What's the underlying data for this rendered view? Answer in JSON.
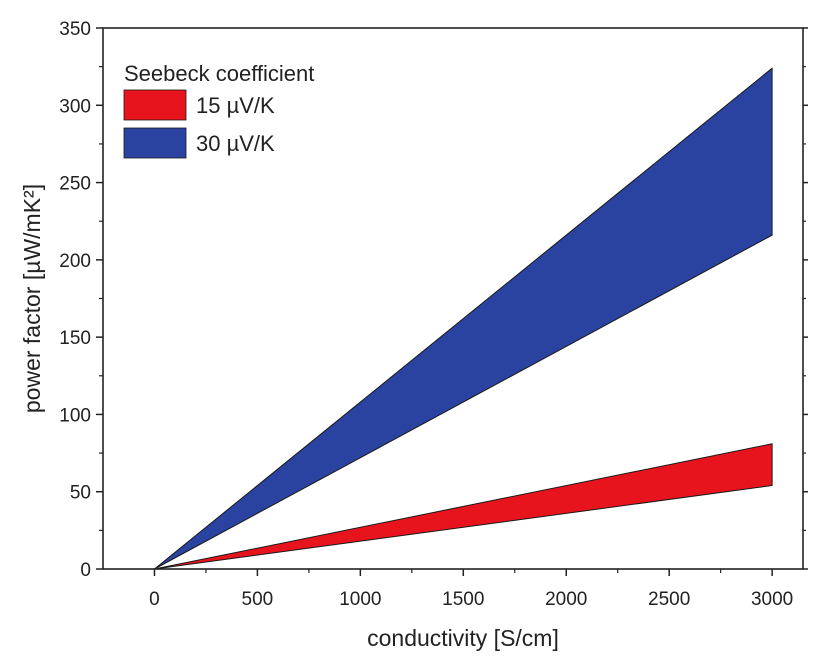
{
  "chart_data": {
    "type": "area",
    "title": "",
    "xlabel": "conductivity [S/cm]",
    "ylabel": "power factor [µW/mK²]",
    "xlim": [
      -250,
      3150
    ],
    "ylim": [
      0,
      350
    ],
    "x_ticks": [
      0,
      500,
      1000,
      1500,
      2000,
      2500,
      3000
    ],
    "x_tick_labels": [
      "0",
      "500",
      "1000",
      "1500",
      "2000",
      "2500",
      "3000"
    ],
    "y_ticks": [
      0,
      50,
      100,
      150,
      200,
      250,
      300,
      350
    ],
    "y_tick_labels": [
      "0",
      "50",
      "100",
      "150",
      "200",
      "250",
      "300",
      "350"
    ],
    "grid": false,
    "legend": {
      "title": "Seebeck coefficient",
      "placement": "top-left"
    },
    "series": [
      {
        "name": "15 µV/K",
        "color": "#e8141d",
        "x": [
          0,
          3000
        ],
        "lower": [
          0,
          54
        ],
        "upper": [
          0,
          81
        ]
      },
      {
        "name": "30 µV/K",
        "color": "#2b43a0",
        "x": [
          0,
          3000
        ],
        "lower": [
          0,
          216
        ],
        "upper": [
          0,
          324
        ]
      }
    ]
  }
}
